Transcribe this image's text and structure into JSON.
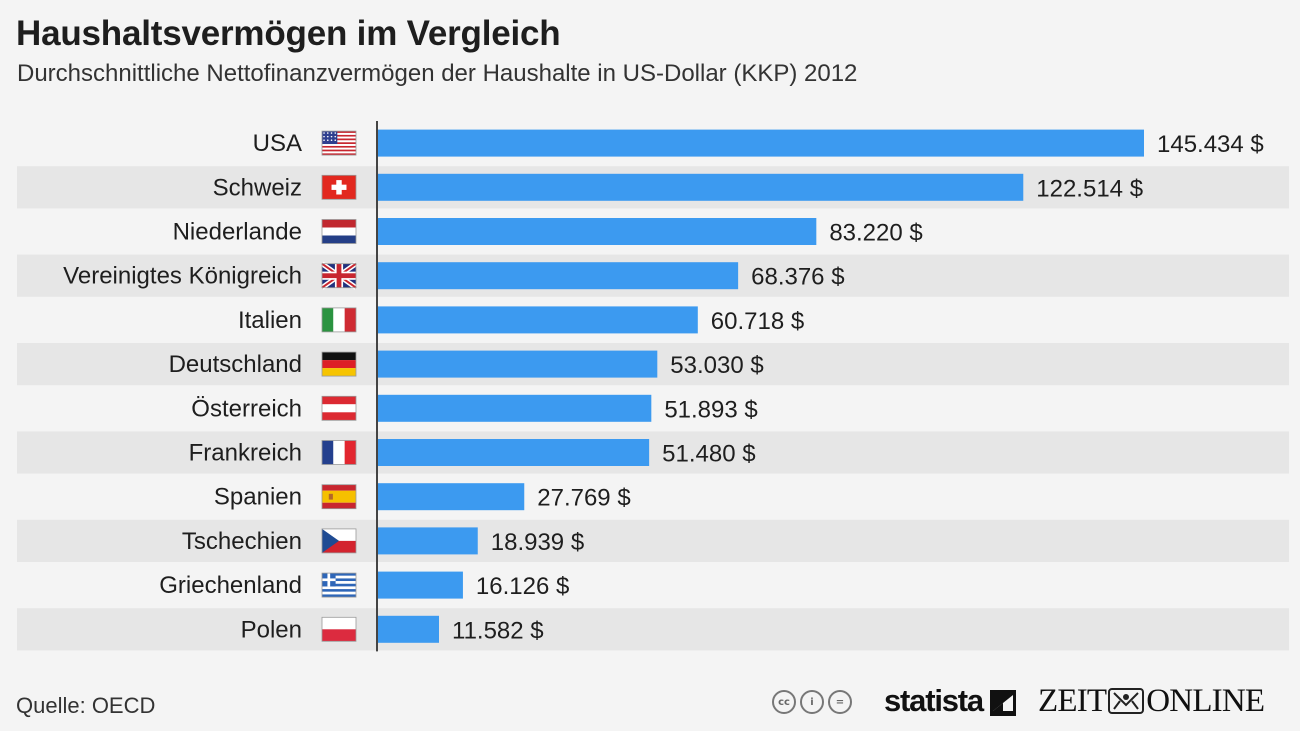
{
  "title": "Haushaltsvermögen im Vergleich",
  "subtitle": "Durchschnittliche Nettofinanzvermögen der Haushalte in US-Dollar (KKP) 2012",
  "source": "Quelle: OECD",
  "branding": {
    "statista": "statista",
    "zeit_left": "ZEIT",
    "zeit_right": "ONLINE",
    "license_icons": [
      "cc-icon",
      "by-icon",
      "nd-icon"
    ],
    "license_glyphs": [
      "cc",
      "i",
      "="
    ]
  },
  "colors": {
    "bar": "#3c9af0",
    "stripe": "#e6e6e6",
    "background": "#f4f4f4",
    "axis": "#444444"
  },
  "chart_data": {
    "type": "bar",
    "orientation": "horizontal",
    "title": "Haushaltsvermögen im Vergleich",
    "subtitle": "Durchschnittliche Nettofinanzvermögen der Haushalte in US-Dollar (KKP) 2012",
    "categories": [
      "USA",
      "Schweiz",
      "Niederlande",
      "Vereinigtes Königreich",
      "Italien",
      "Deutschland",
      "Österreich",
      "Frankreich",
      "Spanien",
      "Tschechien",
      "Griechenland",
      "Polen"
    ],
    "flags": [
      "us-flag",
      "ch-flag",
      "nl-flag",
      "gb-flag",
      "it-flag",
      "de-flag",
      "at-flag",
      "fr-flag",
      "es-flag",
      "cz-flag",
      "gr-flag",
      "pl-flag"
    ],
    "values": [
      145434,
      122514,
      83220,
      68376,
      60718,
      53030,
      51893,
      51480,
      27769,
      18939,
      16126,
      11582
    ],
    "value_labels": [
      "145.434 $",
      "122.514 $",
      "83.220 $",
      "68.376 $",
      "60.718 $",
      "53.030 $",
      "51.893 $",
      "51.480 $",
      "27.769 $",
      "18.939 $",
      "16.126 $",
      "11.582 $"
    ],
    "xlim": [
      0,
      145434
    ],
    "unit": "US-Dollar (KKP)",
    "year": "2012"
  }
}
